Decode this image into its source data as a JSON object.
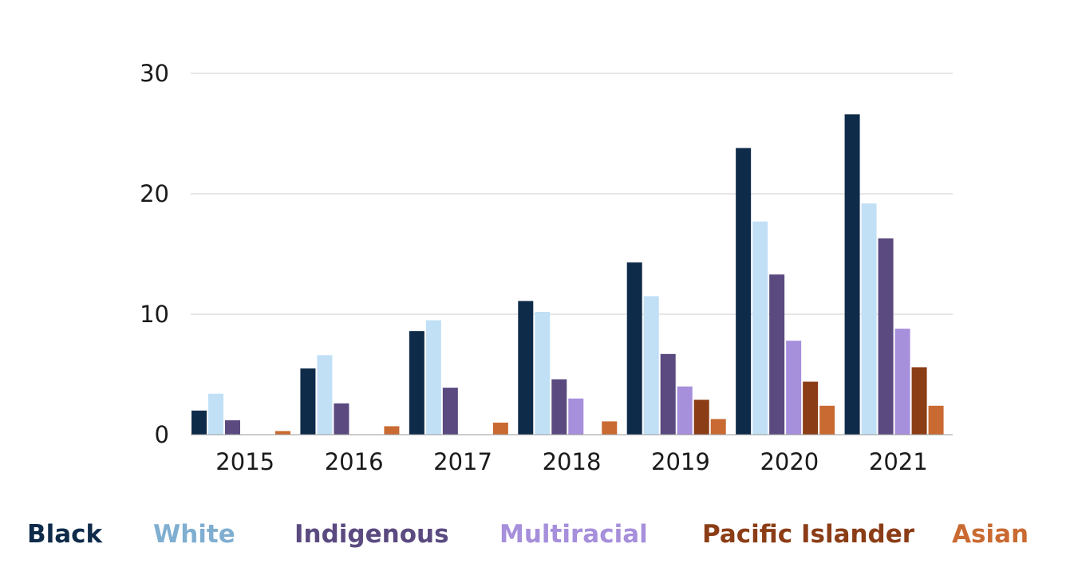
{
  "chart_data": {
    "type": "bar",
    "title": "",
    "xlabel": "",
    "ylabel": "",
    "ylim": [
      0,
      30
    ],
    "yticks": [
      0,
      10,
      20,
      30
    ],
    "grid": true,
    "legend_position": "bottom",
    "categories": [
      "2015",
      "2016",
      "2017",
      "2018",
      "2019",
      "2020",
      "2021"
    ],
    "series": [
      {
        "name": "Black",
        "color": "#0f2b4a",
        "values": [
          2.0,
          5.5,
          8.6,
          11.1,
          14.3,
          23.8,
          26.6
        ]
      },
      {
        "name": "White",
        "color": "#c1e0f6",
        "values": [
          3.4,
          6.6,
          9.5,
          10.2,
          11.5,
          17.7,
          19.2
        ]
      },
      {
        "name": "Indigenous",
        "color": "#5b4a80",
        "values": [
          1.2,
          2.6,
          3.9,
          4.6,
          6.7,
          13.3,
          16.3
        ]
      },
      {
        "name": "Multiracial",
        "color": "#a68fdb",
        "values": [
          0,
          0,
          0,
          3.0,
          4.0,
          7.8,
          8.8
        ]
      },
      {
        "name": "Pacific Islander",
        "color": "#8b3d16",
        "values": [
          0,
          0,
          0,
          0,
          2.9,
          4.4,
          5.6
        ]
      },
      {
        "name": "Asian",
        "color": "#c96a32",
        "values": [
          0.3,
          0.7,
          1.0,
          1.1,
          1.3,
          2.4,
          2.4
        ]
      }
    ],
    "legend_text_colors": {
      "Black": "#0f2b4a",
      "White": "#7faed1",
      "Indigenous": "#5b4a80",
      "Multiracial": "#a68fdb",
      "Pacific Islander": "#8b3d16",
      "Asian": "#c96a32"
    }
  }
}
